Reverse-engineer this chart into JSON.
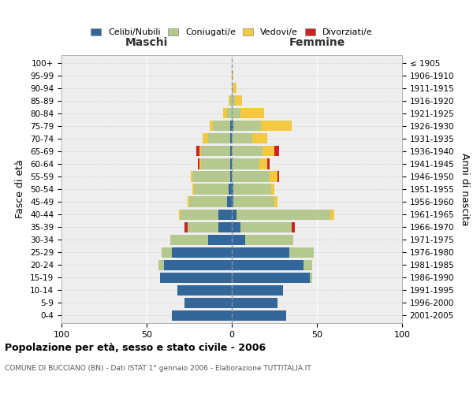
{
  "age_groups": [
    "0-4",
    "5-9",
    "10-14",
    "15-19",
    "20-24",
    "25-29",
    "30-34",
    "35-39",
    "40-44",
    "45-49",
    "50-54",
    "55-59",
    "60-64",
    "65-69",
    "70-74",
    "75-79",
    "80-84",
    "85-89",
    "90-94",
    "95-99",
    "100+"
  ],
  "birth_years": [
    "2001-2005",
    "1996-2000",
    "1991-1995",
    "1986-1990",
    "1981-1985",
    "1976-1980",
    "1971-1975",
    "1966-1970",
    "1961-1965",
    "1956-1960",
    "1951-1955",
    "1946-1950",
    "1941-1945",
    "1936-1940",
    "1931-1935",
    "1926-1930",
    "1921-1925",
    "1916-1920",
    "1911-1915",
    "1906-1910",
    "≤ 1905"
  ],
  "colors": {
    "celibi": "#336699",
    "coniugati": "#b5c98e",
    "vedovi": "#f5c842",
    "divorziati": "#cc2222"
  },
  "males": {
    "celibi": [
      35,
      28,
      32,
      42,
      40,
      35,
      14,
      8,
      8,
      3,
      2,
      1,
      1,
      1,
      1,
      1,
      0,
      0,
      0,
      0,
      0
    ],
    "coniugati": [
      0,
      0,
      0,
      0,
      3,
      6,
      22,
      18,
      22,
      22,
      20,
      22,
      17,
      17,
      13,
      10,
      3,
      1,
      0,
      0,
      0
    ],
    "vedovi": [
      0,
      0,
      0,
      0,
      0,
      0,
      0,
      0,
      1,
      1,
      1,
      1,
      1,
      1,
      3,
      2,
      2,
      1,
      0,
      0,
      0
    ],
    "divorziati": [
      0,
      0,
      0,
      0,
      0,
      0,
      0,
      2,
      0,
      0,
      0,
      0,
      1,
      2,
      0,
      0,
      0,
      0,
      0,
      0,
      0
    ]
  },
  "females": {
    "celibi": [
      32,
      27,
      30,
      46,
      42,
      34,
      8,
      5,
      3,
      1,
      1,
      0,
      0,
      0,
      0,
      1,
      0,
      0,
      0,
      0,
      0
    ],
    "coniugati": [
      0,
      0,
      0,
      1,
      5,
      14,
      28,
      30,
      55,
      24,
      22,
      22,
      16,
      18,
      12,
      16,
      5,
      2,
      1,
      0,
      0
    ],
    "vedovi": [
      0,
      0,
      0,
      0,
      0,
      0,
      0,
      0,
      2,
      2,
      2,
      5,
      5,
      7,
      9,
      18,
      14,
      4,
      2,
      1,
      0
    ],
    "divorziati": [
      0,
      0,
      0,
      0,
      0,
      0,
      0,
      2,
      0,
      0,
      0,
      1,
      1,
      3,
      0,
      0,
      0,
      0,
      0,
      0,
      0
    ]
  },
  "xlim": [
    -100,
    100
  ],
  "xticks": [
    -100,
    -50,
    0,
    50,
    100
  ],
  "xticklabels": [
    "100",
    "50",
    "0",
    "50",
    "100"
  ],
  "title": "Popolazione per età, sesso e stato civile - 2006",
  "subtitle": "COMUNE DI BUCCIANO (BN) - Dati ISTAT 1° gennaio 2006 - Elaborazione TUTTITALIA.IT",
  "ylabel_left": "Fasce di età",
  "ylabel_right": "Anni di nascita",
  "label_maschi": "Maschi",
  "label_femmine": "Femmine",
  "legend_labels": [
    "Celibi/Nubili",
    "Coniugati/e",
    "Vedovi/e",
    "Divorziati/e"
  ],
  "background_color": "#eeeeee",
  "bar_height": 0.82,
  "figsize": [
    6.0,
    5.0
  ],
  "dpi": 100
}
